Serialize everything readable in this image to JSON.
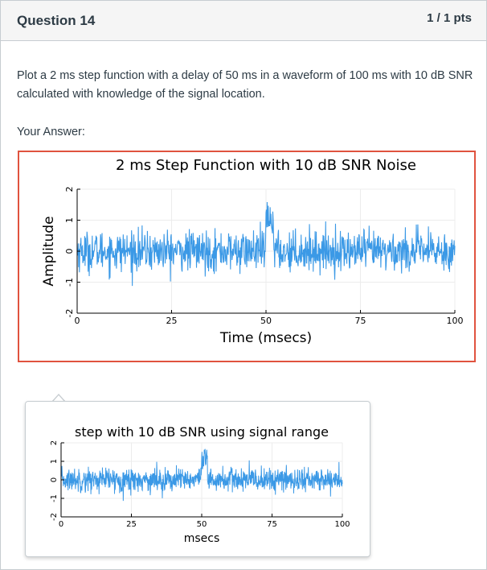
{
  "question": {
    "title": "Question 14",
    "points": "1 / 1 pts",
    "text": "Plot a 2 ms step function with a delay of 50 ms in a waveform of 100 ms with 10 dB SNR calculated with knowledge of the signal location.",
    "your_answer_label": "Your Answer:"
  },
  "colors": {
    "accent": "#e0533f",
    "series": "#3b99e6"
  },
  "chart_data": [
    {
      "type": "line",
      "title": "2 ms Step Function with 10 dB SNR Noise",
      "xlabel": "Time (msecs)",
      "ylabel": "Amplitude",
      "xlim": [
        0,
        100
      ],
      "ylim": [
        -2,
        2
      ],
      "xticks": [
        0,
        25,
        50,
        75,
        100
      ],
      "yticks": [
        -2,
        -1,
        0,
        1,
        2
      ],
      "grid": true,
      "legend": "none",
      "series": [
        {
          "step_start": 50,
          "step_end": 52,
          "step_amplitude": 1,
          "noise_std": 0.32
        }
      ]
    },
    {
      "type": "line",
      "title": "step with 10 dB SNR using signal range",
      "xlabel": "msecs",
      "ylabel": "",
      "xlim": [
        0,
        100
      ],
      "ylim": [
        -2,
        2
      ],
      "xticks": [
        0,
        25,
        50,
        75,
        100
      ],
      "yticks": [
        -2,
        -1,
        0,
        1,
        2
      ],
      "grid": true,
      "legend": "none",
      "series": [
        {
          "step_start": 50,
          "step_end": 52,
          "step_amplitude": 1,
          "noise_std": 0.32
        }
      ]
    }
  ]
}
